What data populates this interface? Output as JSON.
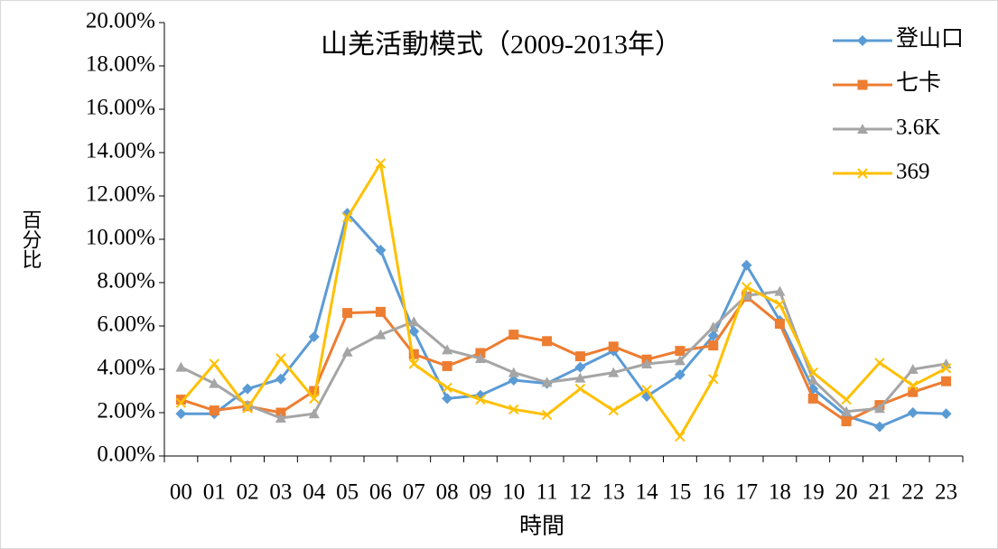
{
  "chart_data": {
    "type": "line",
    "title": "山羌活動模式（2009-2013年）",
    "x_label": "時間",
    "y_label": "百分比",
    "categories": [
      "00",
      "01",
      "02",
      "03",
      "04",
      "05",
      "06",
      "07",
      "08",
      "09",
      "10",
      "11",
      "12",
      "13",
      "14",
      "15",
      "16",
      "17",
      "18",
      "19",
      "20",
      "21",
      "22",
      "23"
    ],
    "series": [
      {
        "name": "登山口",
        "color": "#5b9bd5",
        "marker": "diamond",
        "values": [
          1.95,
          1.95,
          3.1,
          3.55,
          5.5,
          11.2,
          9.5,
          5.75,
          2.65,
          2.8,
          3.5,
          3.35,
          4.1,
          4.85,
          2.75,
          3.75,
          5.55,
          8.8,
          6.25,
          3.1,
          1.85,
          1.35,
          2.0,
          1.95
        ]
      },
      {
        "name": "七卡",
        "color": "#ed7d31",
        "marker": "square",
        "values": [
          2.6,
          2.1,
          2.3,
          2.0,
          3.0,
          6.6,
          6.65,
          4.7,
          4.15,
          4.75,
          5.6,
          5.3,
          4.6,
          5.05,
          4.45,
          4.85,
          5.1,
          7.35,
          6.1,
          2.65,
          1.6,
          2.35,
          2.95,
          3.45
        ]
      },
      {
        "name": "3.6K",
        "color": "#a5a5a5",
        "marker": "triangle",
        "values": [
          4.1,
          3.35,
          2.35,
          1.75,
          1.95,
          4.8,
          5.6,
          6.2,
          4.9,
          4.5,
          3.85,
          3.4,
          3.6,
          3.85,
          4.25,
          4.4,
          5.95,
          7.4,
          7.6,
          3.5,
          2.05,
          2.2,
          4.0,
          4.25
        ]
      },
      {
        "name": "369",
        "color": "#ffc000",
        "marker": "x",
        "values": [
          2.45,
          4.25,
          2.2,
          4.5,
          2.65,
          11.0,
          13.5,
          4.25,
          3.15,
          2.6,
          2.15,
          1.9,
          3.1,
          2.1,
          3.05,
          0.9,
          3.55,
          7.8,
          7.0,
          3.85,
          2.6,
          4.3,
          3.25,
          4.05
        ]
      }
    ],
    "ylim": [
      0,
      20
    ],
    "yticks": [
      {
        "value": 0,
        "label": "0.00%"
      },
      {
        "value": 2,
        "label": "2.00%"
      },
      {
        "value": 4,
        "label": "4.00%"
      },
      {
        "value": 6,
        "label": "6.00%"
      },
      {
        "value": 8,
        "label": "8.00%"
      },
      {
        "value": 10,
        "label": "10.00%"
      },
      {
        "value": 12,
        "label": "12.00%"
      },
      {
        "value": 14,
        "label": "14.00%"
      },
      {
        "value": 16,
        "label": "16.00%"
      },
      {
        "value": 18,
        "label": "18.00%"
      },
      {
        "value": 20,
        "label": "20.00%"
      }
    ],
    "legend": "top-right"
  }
}
